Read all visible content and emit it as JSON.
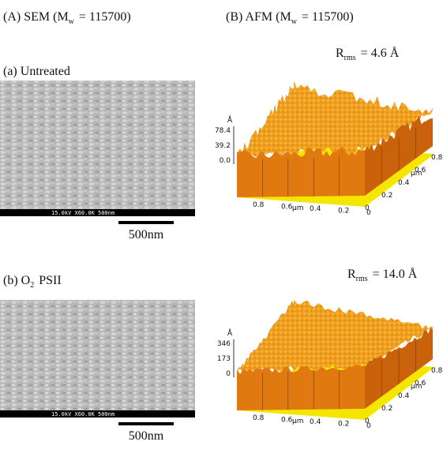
{
  "header": {
    "sem": {
      "text": "(A) SEM (M",
      "sub": "w",
      "tail": "= 115700)"
    },
    "afm": {
      "text": "(B) AFM (M",
      "sub": "w",
      "tail": "= 115700)"
    }
  },
  "panels": [
    {
      "label": {
        "text": "(a) Untreated"
      },
      "rrms": {
        "symbol": "R",
        "sub": "rms",
        "value": "= 4.6 Å"
      },
      "sem_bar": "15.0kV X60.0K 500nm",
      "scale": "500nm",
      "afm": {
        "unit": "Å",
        "z_ticks": [
          "78.4",
          "39.2",
          "0.0"
        ],
        "x_ticks": [
          "0.8",
          "0.6",
          "0.4",
          "0.2",
          "0"
        ],
        "x_unit": "µm",
        "y_ticks": [
          "0",
          "0.2",
          "0.4",
          "0.6",
          "0.8"
        ],
        "y_unit": "µm"
      }
    },
    {
      "label": {
        "text": "(b) O",
        "sub": "2",
        "tail": "PSII"
      },
      "rrms": {
        "symbol": "R",
        "sub": "rms",
        "value": "= 14.0 Å"
      },
      "sem_bar": "15.0kV X60.0K 500nm",
      "scale": "500nm",
      "afm": {
        "unit": "Å",
        "z_ticks": [
          "346",
          "173",
          "0"
        ],
        "x_ticks": [
          "0.8",
          "0.6",
          "0.4",
          "0.2",
          "0"
        ],
        "x_unit": "µm",
        "y_ticks": [
          "0",
          "0.2",
          "0.4",
          "0.6",
          "0.8"
        ],
        "y_unit": "µm"
      }
    }
  ]
}
